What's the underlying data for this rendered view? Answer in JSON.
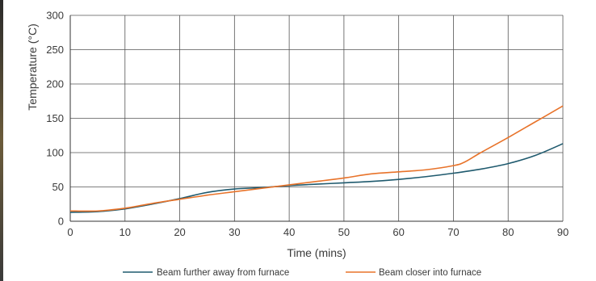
{
  "chart_data": {
    "type": "line",
    "title": "",
    "xlabel": "Time (mins)",
    "ylabel": "Temperature (°C)",
    "xlim": [
      0,
      90
    ],
    "ylim": [
      0,
      300
    ],
    "xticks": [
      0,
      10,
      20,
      30,
      40,
      50,
      60,
      70,
      80,
      90
    ],
    "yticks": [
      0,
      50,
      100,
      150,
      200,
      250,
      300
    ],
    "grid": true,
    "legend_position": "bottom",
    "series": [
      {
        "name": "Beam further away from furnace",
        "color": "#1f5a6e",
        "x": [
          0,
          5,
          10,
          15,
          20,
          25,
          30,
          35,
          40,
          45,
          50,
          55,
          60,
          65,
          70,
          75,
          80,
          85,
          90
        ],
        "y": [
          13,
          14,
          18,
          25,
          33,
          42,
          47,
          49,
          52,
          54,
          56,
          58,
          61,
          65,
          70,
          76,
          84,
          96,
          113
        ]
      },
      {
        "name": "Beam closer into furnace",
        "color": "#e8732a",
        "x": [
          0,
          5,
          10,
          15,
          20,
          25,
          30,
          35,
          40,
          45,
          50,
          55,
          60,
          65,
          70,
          72,
          75,
          80,
          85,
          90
        ],
        "y": [
          15,
          15,
          19,
          26,
          32,
          38,
          43,
          48,
          53,
          58,
          63,
          69,
          72,
          75,
          81,
          86,
          100,
          122,
          145,
          168
        ]
      }
    ]
  }
}
